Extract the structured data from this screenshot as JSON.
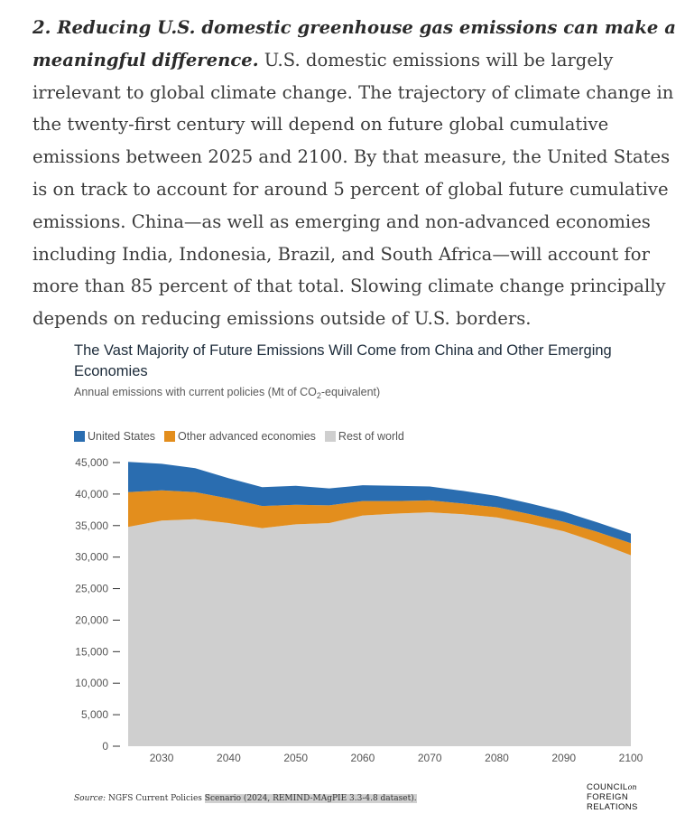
{
  "paragraph": {
    "lead": "2. Reducing U.S. domestic greenhouse gas emissions can make a meaningful difference.",
    "body": " U.S. domestic emissions will be largely irrelevant to global climate change. The trajectory of climate change in the twenty-first century will depend on future global cumulative emissions between 2025 and 2100. By that measure, the United States is on track to account for around 5 percent of global future cumulative emissions. China—as well as emerging and non-advanced economies including India, Indonesia, Brazil, and South Africa—will account for more than 85 percent of that total. Slowing climate change principally depends on reducing emissions outside of U.S. borders."
  },
  "chart_data": {
    "type": "area",
    "stacked": true,
    "title": "The Vast Majority of Future Emissions Will Come from China and Other Emerging Economies",
    "subtitle_prefix": "Annual emissions with current policies (Mt of CO",
    "subtitle_sub": "2",
    "subtitle_suffix": "-equivalent)",
    "xlabel": "",
    "ylabel": "",
    "x": [
      2025,
      2030,
      2035,
      2040,
      2045,
      2050,
      2055,
      2060,
      2065,
      2070,
      2075,
      2080,
      2085,
      2090,
      2095,
      2100
    ],
    "xlim": [
      2025,
      2100
    ],
    "xticks": [
      2030,
      2040,
      2050,
      2060,
      2070,
      2080,
      2090,
      2100
    ],
    "xtick_labels": [
      "2030",
      "2040",
      "2050",
      "2060",
      "2070",
      "2080",
      "2090",
      "2100"
    ],
    "ylim": [
      0,
      45000
    ],
    "yticks": [
      0,
      5000,
      10000,
      15000,
      20000,
      25000,
      30000,
      35000,
      40000,
      45000
    ],
    "ytick_labels": [
      "0",
      "5,000",
      "10,000",
      "15,000",
      "20,000",
      "25,000",
      "30,000",
      "35,000",
      "40,000",
      "45,000"
    ],
    "legend_position": "top-left",
    "series": [
      {
        "name": "Rest of world",
        "color": "#cfcfcf",
        "values": [
          34800,
          35800,
          36000,
          35400,
          34600,
          35200,
          35400,
          36600,
          36900,
          37100,
          36800,
          36300,
          35300,
          34100,
          32300,
          30300
        ]
      },
      {
        "name": "Other advanced economies",
        "color": "#e38e1d",
        "values": [
          5500,
          4800,
          4300,
          3900,
          3500,
          3100,
          2800,
          2300,
          2000,
          1900,
          1700,
          1600,
          1500,
          1500,
          1700,
          1900
        ]
      },
      {
        "name": "United States",
        "color": "#2a6db0",
        "values": [
          4800,
          4200,
          3800,
          3200,
          3000,
          3000,
          2700,
          2500,
          2400,
          2200,
          2000,
          1800,
          1700,
          1600,
          1500,
          1500
        ]
      }
    ],
    "legend": [
      {
        "label": "United States",
        "color": "#2a6db0"
      },
      {
        "label": "Other advanced economies",
        "color": "#e38e1d"
      },
      {
        "label": "Rest of world",
        "color": "#cfcfcf"
      }
    ]
  },
  "source": {
    "label": "Source:",
    "text": " NGFS Current Policies ",
    "highlighted": "Scenario (2024, REMIND-MAgPIE 3.3-4.8 dataset)."
  },
  "logo": {
    "line1": "COUNCIL",
    "line1_small": "on",
    "line2": "FOREIGN",
    "line3": "RELATIONS"
  }
}
